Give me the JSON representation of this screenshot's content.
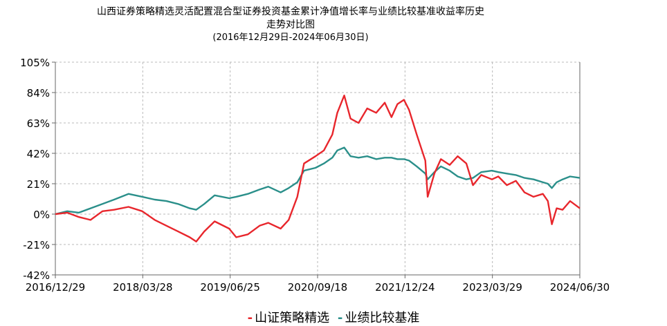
{
  "chart_data": {
    "type": "line",
    "title_lines": [
      "山西证券策略精选灵活配置混合型证券投资基金累计净值增长率与业绩比较基准收益率历史",
      "走势对比图"
    ],
    "subtitle": "(2016年12月29日-2024年06月30日)",
    "x_tick_labels": [
      "2016/12/29",
      "2018/03/28",
      "2019/06/25",
      "2020/09/18",
      "2021/12/24",
      "2023/03/29",
      "2024/06/30"
    ],
    "y_tick_labels": [
      "105%",
      "84%",
      "63%",
      "42%",
      "21%",
      "0%",
      "-21%",
      "-42%"
    ],
    "y_ticks": [
      105,
      84,
      63,
      42,
      21,
      0,
      -21,
      -42
    ],
    "ylim": [
      -42,
      105
    ],
    "xlim": [
      "2016-12-29",
      "2024-06-30"
    ],
    "grid": true,
    "legend_position": "bottom",
    "series": [
      {
        "name": "山证策略精选",
        "color": "#e8262c",
        "points": [
          [
            "2016-12-29",
            0
          ],
          [
            "2017-03-01",
            1
          ],
          [
            "2017-05-01",
            -2
          ],
          [
            "2017-07-01",
            -4
          ],
          [
            "2017-09-01",
            2
          ],
          [
            "2017-11-01",
            3
          ],
          [
            "2018-01-15",
            5
          ],
          [
            "2018-03-28",
            2
          ],
          [
            "2018-06-01",
            -4
          ],
          [
            "2018-08-01",
            -8
          ],
          [
            "2018-10-01",
            -12
          ],
          [
            "2018-12-01",
            -16
          ],
          [
            "2019-01-04",
            -19
          ],
          [
            "2019-02-15",
            -12
          ],
          [
            "2019-04-10",
            -5
          ],
          [
            "2019-06-25",
            -10
          ],
          [
            "2019-08-01",
            -16
          ],
          [
            "2019-10-01",
            -14
          ],
          [
            "2019-12-01",
            -8
          ],
          [
            "2020-01-15",
            -6
          ],
          [
            "2020-03-20",
            -10
          ],
          [
            "2020-05-01",
            -4
          ],
          [
            "2020-06-15",
            12
          ],
          [
            "2020-07-20",
            35
          ],
          [
            "2020-09-18",
            40
          ],
          [
            "2020-11-01",
            44
          ],
          [
            "2020-12-15",
            55
          ],
          [
            "2021-01-10",
            70
          ],
          [
            "2021-02-15",
            82
          ],
          [
            "2021-03-20",
            66
          ],
          [
            "2021-05-01",
            63
          ],
          [
            "2021-06-15",
            73
          ],
          [
            "2021-08-01",
            70
          ],
          [
            "2021-09-15",
            77
          ],
          [
            "2021-10-20",
            67
          ],
          [
            "2021-11-20",
            76
          ],
          [
            "2021-12-24",
            79
          ],
          [
            "2022-01-20",
            72
          ],
          [
            "2022-03-01",
            55
          ],
          [
            "2022-04-15",
            37
          ],
          [
            "2022-04-27",
            12
          ],
          [
            "2022-06-01",
            28
          ],
          [
            "2022-07-05",
            38
          ],
          [
            "2022-08-20",
            34
          ],
          [
            "2022-10-01",
            40
          ],
          [
            "2022-11-15",
            35
          ],
          [
            "2022-12-20",
            20
          ],
          [
            "2023-02-01",
            27
          ],
          [
            "2023-03-29",
            24
          ],
          [
            "2023-05-01",
            26
          ],
          [
            "2023-06-15",
            20
          ],
          [
            "2023-08-01",
            23
          ],
          [
            "2023-09-15",
            15
          ],
          [
            "2023-11-01",
            12
          ],
          [
            "2023-12-20",
            14
          ],
          [
            "2024-01-15",
            9
          ],
          [
            "2024-02-05",
            -7
          ],
          [
            "2024-03-01",
            4
          ],
          [
            "2024-04-01",
            3
          ],
          [
            "2024-05-10",
            9
          ],
          [
            "2024-06-30",
            4
          ]
        ]
      },
      {
        "name": "业绩比较基准",
        "color": "#2a8f8a",
        "points": [
          [
            "2016-12-29",
            0
          ],
          [
            "2017-03-01",
            2
          ],
          [
            "2017-05-01",
            1
          ],
          [
            "2017-07-01",
            4
          ],
          [
            "2017-09-01",
            7
          ],
          [
            "2017-11-01",
            10
          ],
          [
            "2018-01-15",
            14
          ],
          [
            "2018-03-28",
            12
          ],
          [
            "2018-06-01",
            10
          ],
          [
            "2018-08-01",
            9
          ],
          [
            "2018-10-01",
            7
          ],
          [
            "2018-12-01",
            4
          ],
          [
            "2019-01-04",
            3
          ],
          [
            "2019-02-15",
            7
          ],
          [
            "2019-04-10",
            13
          ],
          [
            "2019-06-25",
            11
          ],
          [
            "2019-08-01",
            12
          ],
          [
            "2019-10-01",
            14
          ],
          [
            "2019-12-01",
            17
          ],
          [
            "2020-01-15",
            19
          ],
          [
            "2020-03-20",
            15
          ],
          [
            "2020-05-01",
            18
          ],
          [
            "2020-06-15",
            22
          ],
          [
            "2020-07-20",
            30
          ],
          [
            "2020-09-18",
            32
          ],
          [
            "2020-11-01",
            35
          ],
          [
            "2020-12-15",
            39
          ],
          [
            "2021-01-10",
            44
          ],
          [
            "2021-02-15",
            46
          ],
          [
            "2021-03-20",
            40
          ],
          [
            "2021-05-01",
            39
          ],
          [
            "2021-06-15",
            40
          ],
          [
            "2021-08-01",
            38
          ],
          [
            "2021-09-15",
            39
          ],
          [
            "2021-10-20",
            39
          ],
          [
            "2021-11-20",
            38
          ],
          [
            "2021-12-24",
            38
          ],
          [
            "2022-01-20",
            37
          ],
          [
            "2022-03-01",
            33
          ],
          [
            "2022-04-15",
            28
          ],
          [
            "2022-04-27",
            24
          ],
          [
            "2022-06-01",
            29
          ],
          [
            "2022-07-05",
            33
          ],
          [
            "2022-08-20",
            30
          ],
          [
            "2022-10-01",
            26
          ],
          [
            "2022-11-15",
            24
          ],
          [
            "2022-12-20",
            25
          ],
          [
            "2023-02-01",
            29
          ],
          [
            "2023-03-29",
            30
          ],
          [
            "2023-05-01",
            29
          ],
          [
            "2023-06-15",
            28
          ],
          [
            "2023-08-01",
            27
          ],
          [
            "2023-09-15",
            25
          ],
          [
            "2023-11-01",
            24
          ],
          [
            "2023-12-20",
            22
          ],
          [
            "2024-01-15",
            21
          ],
          [
            "2024-02-05",
            18
          ],
          [
            "2024-03-01",
            22
          ],
          [
            "2024-04-01",
            24
          ],
          [
            "2024-05-10",
            26
          ],
          [
            "2024-06-30",
            25
          ]
        ]
      }
    ]
  }
}
